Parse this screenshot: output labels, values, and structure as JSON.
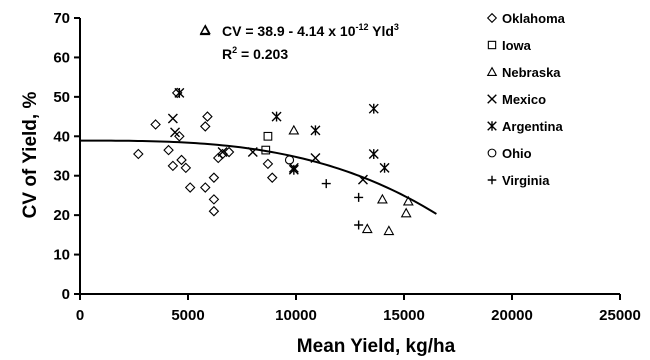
{
  "chart_data": {
    "type": "scatter",
    "xlabel": "Mean Yield, kg/ha",
    "ylabel": "CV of Yield, %",
    "xlim": [
      0,
      25000
    ],
    "ylim": [
      0,
      70
    ],
    "x_ticks": [
      "0",
      "5000",
      "10000",
      "15000",
      "20000",
      "25000"
    ],
    "y_ticks": [
      "0",
      "10",
      "20",
      "30",
      "40",
      "50",
      "60",
      "70"
    ],
    "grid": false,
    "legend_position": "top-right",
    "equation": {
      "main": "CV = 38.9 - 4.14 x 10",
      "exp": "-12",
      "mid": " Yld",
      "pow": "3",
      "r2_main": "R",
      "r2_sup": "2",
      "r2_rest": " = 0.203"
    },
    "fit": {
      "intercept": 38.9,
      "coef": 4.14e-12,
      "power": 3,
      "x_range": [
        0,
        16500
      ]
    },
    "series": [
      {
        "name": "Oklahoma",
        "marker": "diamond",
        "points": [
          [
            2700,
            35.5
          ],
          [
            3500,
            43
          ],
          [
            4100,
            36.5
          ],
          [
            4300,
            32.5
          ],
          [
            4500,
            51
          ],
          [
            4600,
            40
          ],
          [
            4700,
            34
          ],
          [
            4900,
            32
          ],
          [
            5100,
            27
          ],
          [
            5800,
            27
          ],
          [
            5800,
            42.5
          ],
          [
            5900,
            45
          ],
          [
            6200,
            29.5
          ],
          [
            6200,
            24
          ],
          [
            6200,
            21
          ],
          [
            6400,
            34.5
          ],
          [
            6600,
            35.5
          ],
          [
            6900,
            36
          ],
          [
            8700,
            33
          ],
          [
            8900,
            29.5
          ]
        ]
      },
      {
        "name": "Iowa",
        "marker": "square",
        "points": [
          [
            8600,
            36.5
          ],
          [
            8700,
            40
          ]
        ]
      },
      {
        "name": "Nebraska",
        "marker": "triangle",
        "points": [
          [
            5800,
            67
          ],
          [
            9900,
            41.5
          ],
          [
            13300,
            16.5
          ],
          [
            14000,
            24
          ],
          [
            14300,
            16
          ],
          [
            15100,
            20.5
          ],
          [
            15200,
            23.5
          ]
        ]
      },
      {
        "name": "Mexico",
        "marker": "x",
        "points": [
          [
            4300,
            44.5
          ],
          [
            4400,
            41
          ],
          [
            6600,
            36
          ],
          [
            8000,
            36
          ],
          [
            9900,
            32
          ],
          [
            10900,
            34.5
          ],
          [
            13100,
            29
          ]
        ]
      },
      {
        "name": "Argentina",
        "marker": "asterisk",
        "points": [
          [
            4600,
            51
          ],
          [
            9100,
            45
          ],
          [
            9900,
            31.5
          ],
          [
            10900,
            41.5
          ],
          [
            13600,
            47
          ],
          [
            13600,
            35.5
          ],
          [
            14100,
            32
          ]
        ]
      },
      {
        "name": "Ohio",
        "marker": "circle",
        "points": [
          [
            9700,
            34
          ]
        ]
      },
      {
        "name": "Virginia",
        "marker": "plus",
        "points": [
          [
            11400,
            28
          ],
          [
            12900,
            24.5
          ],
          [
            12900,
            17.5
          ]
        ]
      }
    ]
  }
}
